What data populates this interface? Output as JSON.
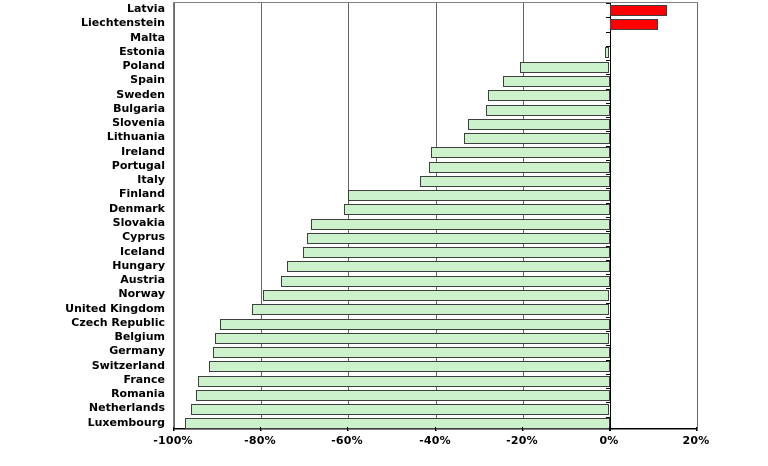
{
  "chart_data": {
    "type": "bar",
    "orientation": "horizontal",
    "title": "",
    "xlabel": "",
    "ylabel": "",
    "unit": "%",
    "categories": [
      "Latvia",
      "Liechtenstein",
      "Malta",
      "Estonia",
      "Poland",
      "Spain",
      "Sweden",
      "Bulgaria",
      "Slovenia",
      "Lithuania",
      "Ireland",
      "Portugal",
      "Italy",
      "Finland",
      "Denmark",
      "Slovakia",
      "Cyprus",
      "Iceland",
      "Hungary",
      "Austria",
      "Norway",
      "United Kingdom",
      "Czech Republic",
      "Belgium",
      "Germany",
      "Switzerland",
      "France",
      "Romania",
      "Netherlands",
      "Luxembourg"
    ],
    "values": [
      13,
      11,
      0,
      -1,
      -20.5,
      -24.5,
      -28,
      -28.5,
      -32.5,
      -33.5,
      -41,
      -41.5,
      -43.5,
      -60,
      -61,
      -68.5,
      -69.5,
      -70.5,
      -74,
      -75.5,
      -79.5,
      -82,
      -89.5,
      -90.5,
      -91,
      -92,
      -94.5,
      -95,
      -96,
      -97.5
    ],
    "xlim": [
      -100,
      20
    ],
    "x_tick_values": [
      -100,
      -80,
      -60,
      -40,
      -20,
      0,
      20
    ],
    "x_tick_labels": [
      "-100%",
      "-80%",
      "-60%",
      "-40%",
      "-20%",
      "0%",
      "20%"
    ],
    "grid": "vertical",
    "legend_position": "none",
    "colors": {
      "positive_bar": "#ff0000",
      "negative_bar": "#ccf2cc",
      "bar_border": "#3f3f3f",
      "gridline": "#666666",
      "zero_axis": "#000000",
      "x_axis_line": "#000000",
      "tick": "#000000",
      "plot_border": "#808080",
      "background": "#ffffff",
      "label_text": "#000000"
    }
  }
}
